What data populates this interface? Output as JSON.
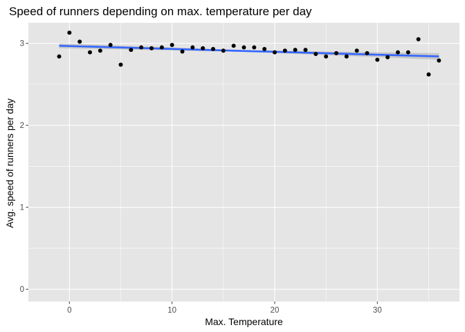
{
  "chart_data": {
    "type": "scatter",
    "title": "Speed of runners depending on max. temperature per day",
    "xlabel": "Max. Temperature",
    "ylabel": "Avg. speed of runners per day",
    "xlim": [
      -4,
      38
    ],
    "ylim": [
      -0.15,
      3.25
    ],
    "x_ticks": [
      0,
      10,
      20,
      30
    ],
    "y_ticks": [
      0,
      1,
      2,
      3
    ],
    "x_tick_labels": [
      "0",
      "10",
      "20",
      "30"
    ],
    "y_tick_labels": [
      "0",
      "1",
      "2",
      "3"
    ],
    "grid": true,
    "legend": "none",
    "points": [
      {
        "x": -1,
        "y": 2.84
      },
      {
        "x": 0,
        "y": 3.13
      },
      {
        "x": 1,
        "y": 3.02
      },
      {
        "x": 2,
        "y": 2.89
      },
      {
        "x": 3,
        "y": 2.91
      },
      {
        "x": 4,
        "y": 2.98
      },
      {
        "x": 5,
        "y": 2.74
      },
      {
        "x": 6,
        "y": 2.92
      },
      {
        "x": 7,
        "y": 2.95
      },
      {
        "x": 8,
        "y": 2.94
      },
      {
        "x": 9,
        "y": 2.95
      },
      {
        "x": 10,
        "y": 2.98
      },
      {
        "x": 11,
        "y": 2.9
      },
      {
        "x": 12,
        "y": 2.95
      },
      {
        "x": 13,
        "y": 2.94
      },
      {
        "x": 14,
        "y": 2.93
      },
      {
        "x": 15,
        "y": 2.91
      },
      {
        "x": 16,
        "y": 2.97
      },
      {
        "x": 17,
        "y": 2.95
      },
      {
        "x": 18,
        "y": 2.95
      },
      {
        "x": 19,
        "y": 2.93
      },
      {
        "x": 20,
        "y": 2.89
      },
      {
        "x": 21,
        "y": 2.91
      },
      {
        "x": 22,
        "y": 2.92
      },
      {
        "x": 23,
        "y": 2.92
      },
      {
        "x": 24,
        "y": 2.87
      },
      {
        "x": 25,
        "y": 2.84
      },
      {
        "x": 26,
        "y": 2.88
      },
      {
        "x": 27,
        "y": 2.84
      },
      {
        "x": 28,
        "y": 2.91
      },
      {
        "x": 29,
        "y": 2.88
      },
      {
        "x": 30,
        "y": 2.8
      },
      {
        "x": 31,
        "y": 2.83
      },
      {
        "x": 32,
        "y": 2.89
      },
      {
        "x": 33,
        "y": 2.89
      },
      {
        "x": 34,
        "y": 3.05
      },
      {
        "x": 35,
        "y": 2.62
      },
      {
        "x": 36,
        "y": 2.79
      }
    ],
    "trend_line": {
      "method": "linear",
      "x": [
        -1,
        36
      ],
      "y": [
        2.97,
        2.84
      ],
      "confidence_band": {
        "x": [
          -1,
          17.5,
          36
        ],
        "lower": [
          2.94,
          2.895,
          2.8
        ],
        "upper": [
          3.0,
          2.915,
          2.88
        ]
      }
    },
    "colors": {
      "panel": "#e5e5e5",
      "grid_major": "#ffffff",
      "points": "#000000",
      "trend_line": "#3366ff",
      "confidence_band": "#999999"
    }
  }
}
